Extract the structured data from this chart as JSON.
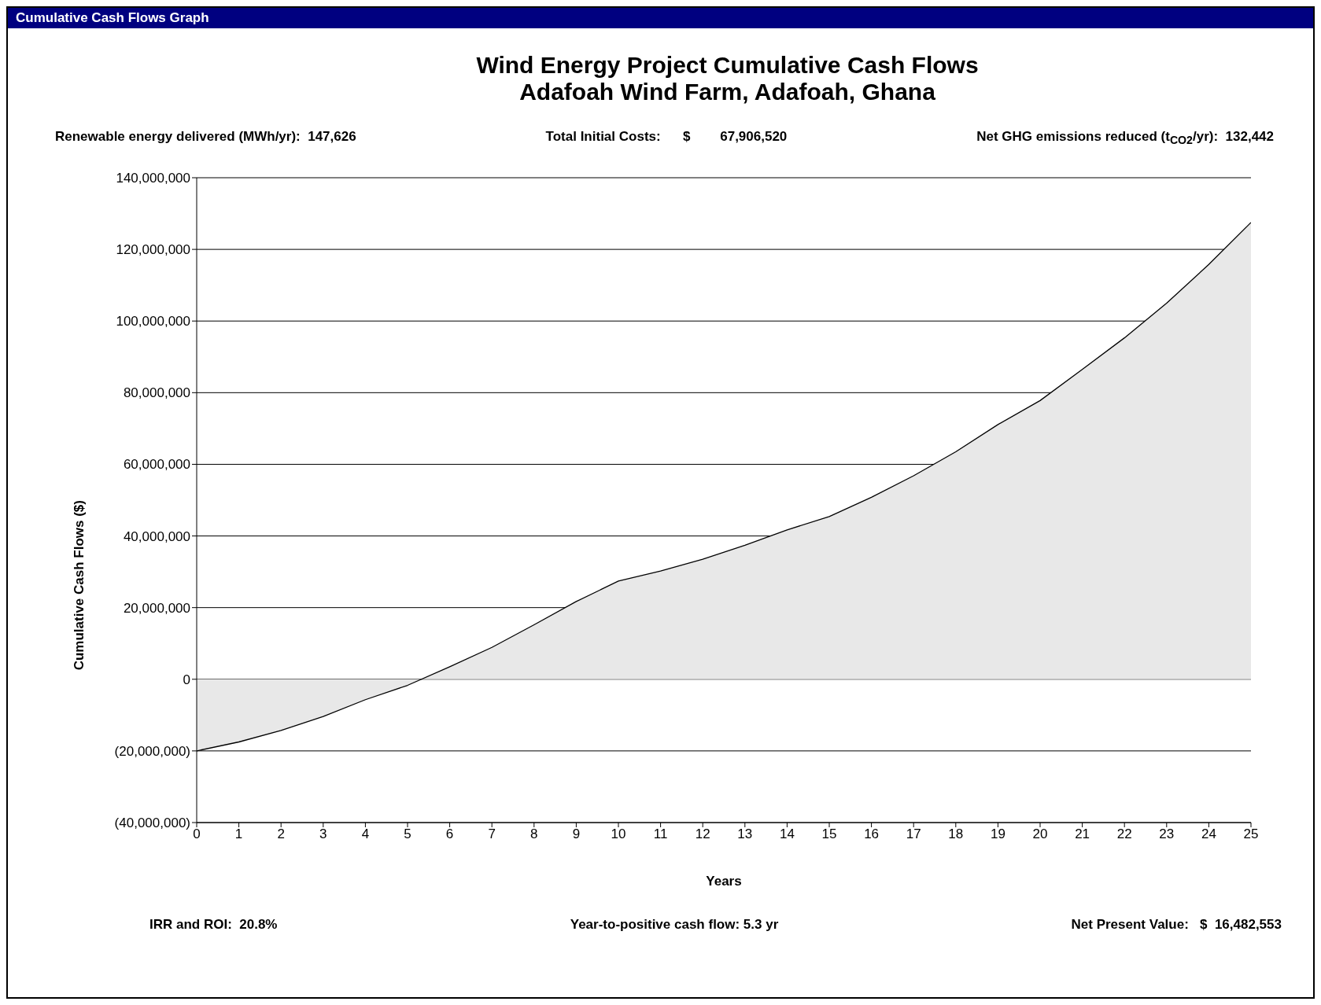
{
  "chart_data": {
    "type": "area",
    "title": "Wind Energy Project Cumulative Cash Flows",
    "subtitle": "Adafoah Wind Farm, Adafoah, Ghana",
    "xlabel": "Years",
    "ylabel": "Cumulative Cash Flows  ($)",
    "annotations": [
      "Cumulative Cash Flows Graph",
      "Renewable energy delivered (MWh/yr):  147,626",
      "Total Initial Costs:      $        67,906,520",
      "Net GHG emissions reduced (t$_{CO2}$/yr):  132,442",
      "IRR and ROI:  20.8%",
      "Year-to-positive cash flow: 5.3 yr",
      "Net Present Value:   $  16,482,553"
    ],
    "x": [
      0,
      1,
      2,
      3,
      4,
      5,
      6,
      7,
      8,
      9,
      10,
      11,
      12,
      13,
      14,
      15,
      16,
      17,
      18,
      19,
      20,
      21,
      22,
      23,
      24,
      25
    ],
    "series": [
      {
        "color": "#e8e8e8",
        "values": [
          -20000000,
          -17500000,
          -14300000,
          -10400000,
          -5700000,
          -1700000,
          3500000,
          8900000,
          15200000,
          21700000,
          27400000,
          30200000,
          33500000,
          37400000,
          41700000,
          45400000,
          50800000,
          56800000,
          63500000,
          71100000,
          77800000,
          86500000,
          95300000,
          105000000,
          115800000,
          127500000
        ]
      }
    ],
    "xlim": [
      0,
      25
    ],
    "xticks": [
      0,
      1,
      2,
      3,
      4,
      5,
      6,
      7,
      8,
      9,
      10,
      11,
      12,
      13,
      14,
      15,
      16,
      17,
      18,
      19,
      20,
      21,
      22,
      23,
      24,
      25
    ],
    "ylim": [
      -40000000,
      140000000
    ],
    "yticks": [
      {
        "value": -40000000,
        "label": "(40,000,000)"
      },
      {
        "value": -20000000,
        "label": "(20,000,000)"
      },
      {
        "value": 0,
        "label": "0"
      },
      {
        "value": 20000000,
        "label": "20,000,000"
      },
      {
        "value": 40000000,
        "label": "40,000,000"
      },
      {
        "value": 60000000,
        "label": "60,000,000"
      },
      {
        "value": 80000000,
        "label": "80,000,000"
      },
      {
        "value": 100000000,
        "label": "100,000,000"
      },
      {
        "value": 120000000,
        "label": "120,000,000"
      },
      {
        "value": 140000000,
        "label": "140,000,000"
      }
    ],
    "grid": "y",
    "legend": false,
    "marker": "none",
    "line_style": "solid"
  }
}
